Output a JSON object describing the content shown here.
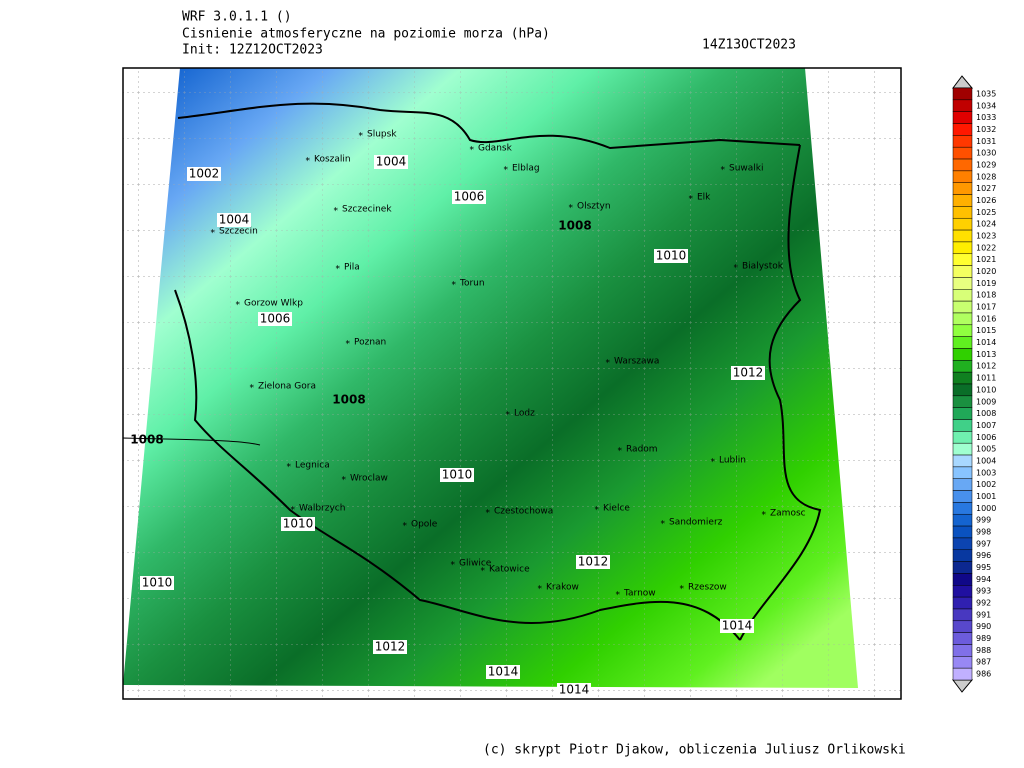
{
  "header": {
    "model": "WRF 3.0.1.1 ()",
    "field": "Cisnienie atmosferyczne na poziomie morza (hPa)",
    "init": "Init: 12Z12OCT2023",
    "valid": "14Z13OCT2023"
  },
  "cities": [
    "Slupsk",
    "Koszalin",
    "Gdansk",
    "Elblag",
    "Szczecinek",
    "Szczecin",
    "Olsztyn",
    "Suwalki",
    "Elk",
    "Pila",
    "Bialystok",
    "Torun",
    "Gorzow Wlkp",
    "Poznan",
    "Warszawa",
    "Zielona Gora",
    "Lodz",
    "Radom",
    "Lublin",
    "Legnica",
    "Wroclaw",
    "Walbrzych",
    "Opole",
    "Czestochowa",
    "Kielce",
    "Sandomierz",
    "Zamosc",
    "Gliwice",
    "Katowice",
    "Krakow",
    "Rzeszow",
    "Tarnow"
  ],
  "contour_labels": [
    "1002",
    "1004",
    "1004",
    "1006",
    "1008",
    "1010",
    "1006",
    "1012",
    "1008",
    "1008",
    "1010",
    "1010",
    "1012",
    "1010",
    "1014",
    "1012",
    "1014",
    "1014"
  ],
  "colorbar": {
    "levels": [
      1035,
      1034,
      1033,
      1032,
      1031,
      1030,
      1029,
      1028,
      1027,
      1026,
      1025,
      1024,
      1023,
      1022,
      1021,
      1020,
      1019,
      1018,
      1017,
      1016,
      1015,
      1014,
      1013,
      1012,
      1011,
      1010,
      1009,
      1008,
      1007,
      1006,
      1005,
      1004,
      1003,
      1002,
      1001,
      1000,
      999,
      998,
      997,
      996,
      995,
      994,
      993,
      992,
      991,
      990,
      989,
      988,
      987,
      986
    ],
    "colors": [
      "#a00000",
      "#c00000",
      "#e00000",
      "#ff1800",
      "#ff3800",
      "#ff5000",
      "#ff6800",
      "#ff8000",
      "#ff9800",
      "#ffb000",
      "#ffc000",
      "#ffd000",
      "#ffe000",
      "#ffee00",
      "#ffff30",
      "#f4ff60",
      "#e8ff80",
      "#d8ff78",
      "#c8ff70",
      "#b0ff60",
      "#90ff40",
      "#60f020",
      "#30d000",
      "#20b020",
      "#108020",
      "#0a6e28",
      "#1a9040",
      "#20a858",
      "#40d088",
      "#70f0b0",
      "#a0ffd0",
      "#a8d8ff",
      "#88c4ff",
      "#68a8f4",
      "#4890ec",
      "#2878e0",
      "#1464d0",
      "#0a52c0",
      "#0c44b0",
      "#0838a0",
      "#0c2890",
      "#100888",
      "#2010a0",
      "#3020b0",
      "#4838c0",
      "#5848cc",
      "#6c5cdc",
      "#8070e8",
      "#9888f4",
      "#c0b0ff"
    ]
  },
  "credit": "(c) skrypt Piotr Djakow, obliczenia Juliusz Orlikowski"
}
